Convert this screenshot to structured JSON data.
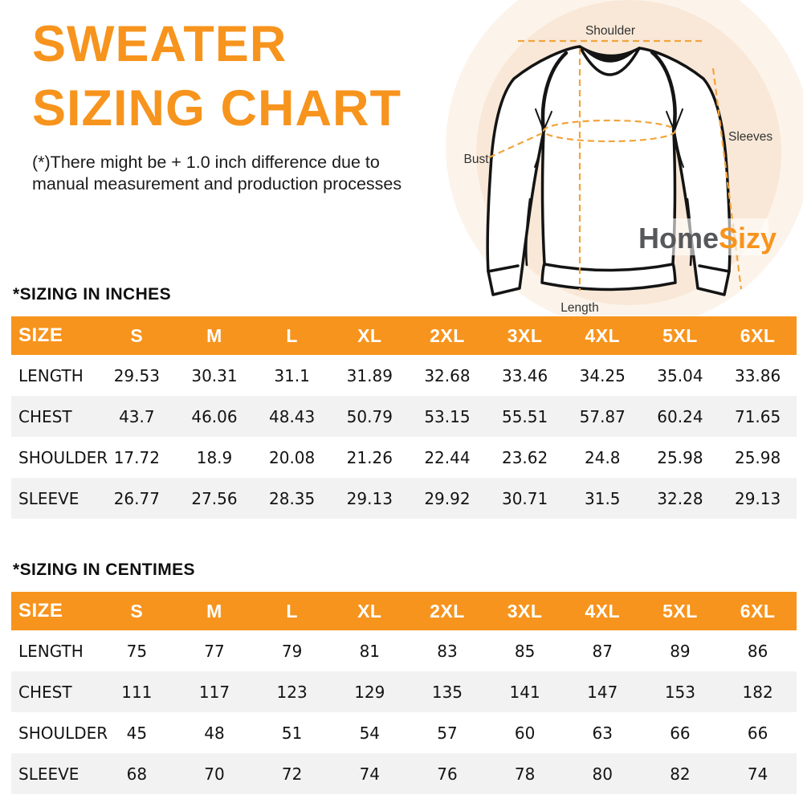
{
  "hero": {
    "title_line1": "SWEATER",
    "title_line2": "SIZING CHART",
    "disclaimer_line1": "(*)There might be + 1.0 inch difference due to",
    "disclaimer_line2": "manual measurement and production processes"
  },
  "logo": {
    "part1": "Home",
    "part2": "Sizy"
  },
  "diagram": {
    "shoulder_label": "Shoulder",
    "sleeves_label": "Sleeves",
    "bust_label": "Bust",
    "length_label": "Length"
  },
  "colors": {
    "accent_orange": "#F7941D",
    "dashed_line_orange": "#F2A43C",
    "alt_row_gray": "#F2F2F2",
    "logo_gray": "#57585A",
    "circle_peach": "#F9E8D7"
  },
  "chart_data": [
    {
      "type": "table",
      "title": "*SIZING IN INCHES",
      "columns": [
        "SIZE",
        "S",
        "M",
        "L",
        "XL",
        "2XL",
        "3XL",
        "4XL",
        "5XL",
        "6XL"
      ],
      "rows": [
        {
          "label": "LENGTH",
          "values": [
            "29.53",
            "30.31",
            "31.1",
            "31.89",
            "32.68",
            "33.46",
            "34.25",
            "35.04",
            "33.86"
          ]
        },
        {
          "label": "CHEST",
          "values": [
            "43.7",
            "46.06",
            "48.43",
            "50.79",
            "53.15",
            "55.51",
            "57.87",
            "60.24",
            "71.65"
          ]
        },
        {
          "label": "SHOULDER",
          "values": [
            "17.72",
            "18.9",
            "20.08",
            "21.26",
            "22.44",
            "23.62",
            "24.8",
            "25.98",
            "25.98"
          ]
        },
        {
          "label": "SLEEVE",
          "values": [
            "26.77",
            "27.56",
            "28.35",
            "29.13",
            "29.92",
            "30.71",
            "31.5",
            "32.28",
            "29.13"
          ]
        }
      ]
    },
    {
      "type": "table",
      "title": "*SIZING IN CENTIMES",
      "columns": [
        "SIZE",
        "S",
        "M",
        "L",
        "XL",
        "2XL",
        "3XL",
        "4XL",
        "5XL",
        "6XL"
      ],
      "rows": [
        {
          "label": "LENGTH",
          "values": [
            "75",
            "77",
            "79",
            "81",
            "83",
            "85",
            "87",
            "89",
            "86"
          ]
        },
        {
          "label": "CHEST",
          "values": [
            "111",
            "117",
            "123",
            "129",
            "135",
            "141",
            "147",
            "153",
            "182"
          ]
        },
        {
          "label": "SHOULDER",
          "values": [
            "45",
            "48",
            "51",
            "54",
            "57",
            "60",
            "63",
            "66",
            "66"
          ]
        },
        {
          "label": "SLEEVE",
          "values": [
            "68",
            "70",
            "72",
            "74",
            "76",
            "78",
            "80",
            "82",
            "74"
          ]
        }
      ]
    }
  ]
}
